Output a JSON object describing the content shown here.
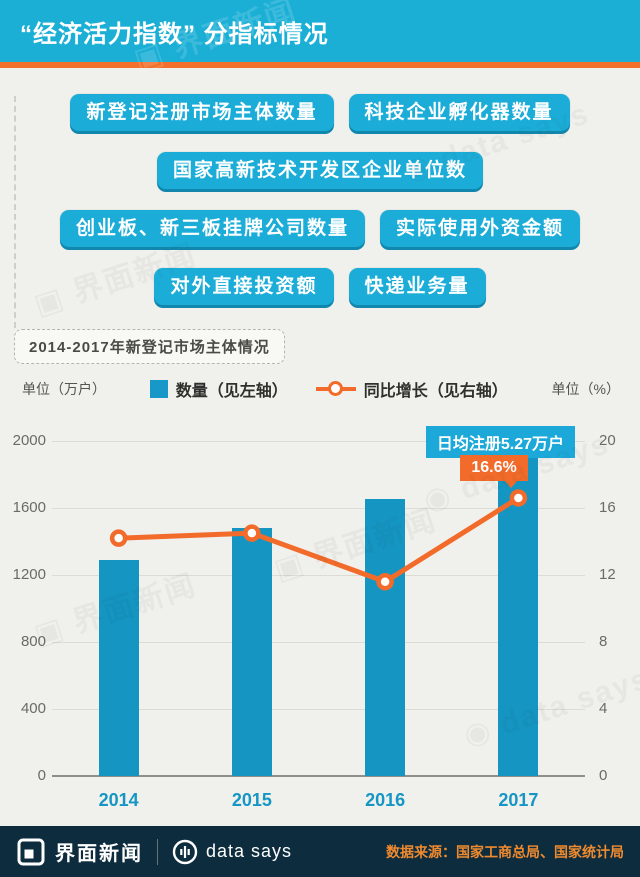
{
  "header": {
    "title": "“经济活力指数” 分指标情况"
  },
  "indicators": {
    "rows": [
      [
        "新登记注册市场主体数量",
        "科技企业孵化器数量"
      ],
      [
        "国家高新技术开发区企业单位数"
      ],
      [
        "创业板、新三板挂牌公司数量",
        "实际使用外资金额"
      ],
      [
        "对外直接投资额",
        "快递业务量"
      ]
    ]
  },
  "subtitle": "2014-2017年新登记市场主体情况",
  "legend": {
    "unit_left": "单位（万户）",
    "unit_right": "单位（%）",
    "bar_series": "数量（见左轴）",
    "line_series": "同比增长（见右轴）"
  },
  "chart_data": {
    "type": "bar+line",
    "title": "2014-2017年新登记市场主体情况",
    "categories": [
      "2014",
      "2015",
      "2016",
      "2017"
    ],
    "series": [
      {
        "name": "数量（见左轴）",
        "type": "bar",
        "axis": "left",
        "values": [
          1292.5,
          1479.8,
          1651.3,
          1924.9
        ]
      },
      {
        "name": "同比增长（见右轴）",
        "type": "line",
        "axis": "right",
        "values": [
          14.2,
          14.5,
          11.6,
          16.6
        ]
      }
    ],
    "left_axis": {
      "label": "单位（万户）",
      "ticks": [
        0,
        400,
        800,
        1200,
        1600,
        2000
      ],
      "range": [
        0,
        2000
      ]
    },
    "right_axis": {
      "label": "单位（%）",
      "ticks": [
        0,
        4,
        8,
        12,
        16,
        20
      ],
      "range": [
        0,
        20
      ]
    },
    "annotations": [
      {
        "text": "日均注册5.27万户",
        "color": "#1CA9D9",
        "target": "2017-bar"
      },
      {
        "text": "16.6%",
        "color": "#F26B2A",
        "target": "2017-line-point"
      }
    ],
    "grid": true,
    "legend_position": "top"
  },
  "colors": {
    "header_cyan": "#1BAFD6",
    "button_cyan": "#1BADD8",
    "button_cyan_dark": "#1187AE",
    "bar_blue": "#1495C2",
    "orange": "#F26B2A",
    "accent_strip": "#F2702C",
    "footer_navy": "#0D2C3E",
    "source_orange": "#EF8A2F",
    "background": "#F0F0EC"
  },
  "watermark": {
    "brand": "界面新闻",
    "datasays": "data says"
  },
  "footer": {
    "brand": "界面新闻",
    "datasays": "data says",
    "source": "数据来源：国家工商总局、国家统计局"
  }
}
